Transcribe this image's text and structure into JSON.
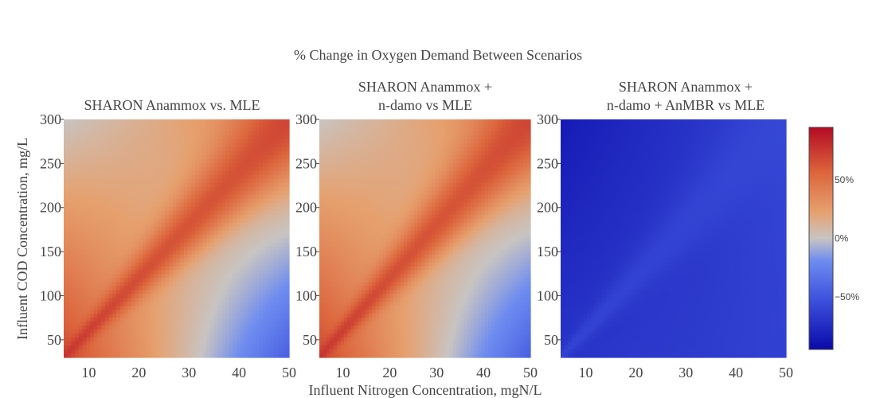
{
  "chart_data": {
    "type": "heatmap",
    "title": "% Change in Oxygen Demand Between Scenarios",
    "xlabel": "Influent Nitrogen Concentration, mgN/L",
    "ylabel": "Influent COD Concentration, mg/L",
    "xlim": [
      5,
      50
    ],
    "ylim": [
      30,
      300
    ],
    "x_ticks": [
      "10",
      "20",
      "30",
      "40",
      "50"
    ],
    "y_ticks": [
      "50",
      "100",
      "150",
      "200",
      "250",
      "300"
    ],
    "panels": [
      {
        "title_lines": [
          "SHARON Anammox vs. MLE"
        ],
        "corner_values": {
          "x5_y300": 0,
          "x50_y300": 40,
          "x5_y30": 70,
          "x50_y30": -45
        },
        "ridge_ratio_cod_per_n": 6,
        "ridge_value": 80
      },
      {
        "title_lines": [
          "SHARON Anammox +",
          "n-damo vs MLE"
        ],
        "corner_values": {
          "x5_y300": 0,
          "x50_y300": 40,
          "x5_y30": 70,
          "x50_y30": -45
        },
        "ridge_ratio_cod_per_n": 6,
        "ridge_value": 80
      },
      {
        "title_lines": [
          "SHARON Anammox +",
          "n-damo + AnMBR vs MLE"
        ],
        "corner_values": {
          "x5_y300": -85,
          "x50_y300": -60,
          "x5_y30": -70,
          "x50_y30": -62
        },
        "ridge_ratio_cod_per_n": 6,
        "ridge_value": -58
      }
    ],
    "colorbar": {
      "range": [
        -95,
        95
      ],
      "ticks": [
        "50%",
        "0%",
        "−50%"
      ],
      "tick_values": [
        50,
        0,
        -50
      ],
      "colorscale": "blue-grey-red"
    },
    "grid": false
  }
}
